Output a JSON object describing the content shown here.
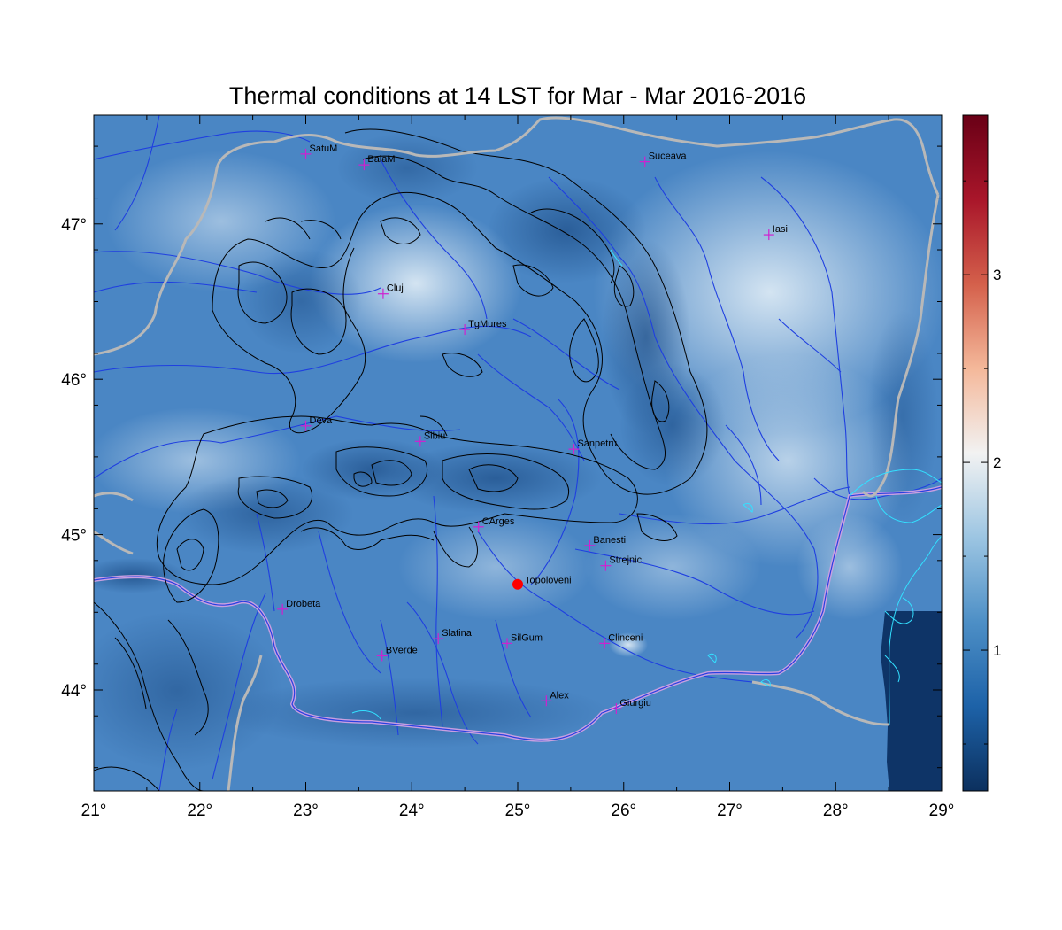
{
  "title": "Thermal conditions at 14 LST for Mar - Mar  2016-2016",
  "map": {
    "lon_range": [
      21,
      29
    ],
    "lat_range": [
      43.35,
      47.7
    ],
    "x_ticks": [
      {
        "value": 21,
        "label": "21°"
      },
      {
        "value": 22,
        "label": "22°"
      },
      {
        "value": 23,
        "label": "23°"
      },
      {
        "value": 24,
        "label": "24°"
      },
      {
        "value": 25,
        "label": "25°"
      },
      {
        "value": 26,
        "label": "26°"
      },
      {
        "value": 27,
        "label": "27°"
      },
      {
        "value": 28,
        "label": "28°"
      },
      {
        "value": 29,
        "label": "29°"
      }
    ],
    "y_ticks": [
      {
        "value": 44,
        "label": "44°"
      },
      {
        "value": 45,
        "label": "45°"
      },
      {
        "value": 46,
        "label": "46°"
      },
      {
        "value": 47,
        "label": "47°"
      }
    ],
    "colors": {
      "field_dark": "#1d4f8c",
      "field_mid": "#4a86c4",
      "field_light": "#cfe0ef",
      "river": "#1f3fe0",
      "border": "#b8b8b8",
      "coast": "#33e0ff",
      "contour": "#000000",
      "station_marker": "#d020d0",
      "highlight_point": "#ff0000"
    },
    "stations": [
      {
        "name": "SatuM",
        "lon": 23.0,
        "lat": 47.45
      },
      {
        "name": "BaiaM",
        "lon": 23.55,
        "lat": 47.38
      },
      {
        "name": "Suceava",
        "lon": 26.2,
        "lat": 47.4
      },
      {
        "name": "Iasi",
        "lon": 27.37,
        "lat": 46.93
      },
      {
        "name": "Cluj",
        "lon": 23.73,
        "lat": 46.55
      },
      {
        "name": "TgMures",
        "lon": 24.5,
        "lat": 46.32
      },
      {
        "name": "Deva",
        "lon": 23.0,
        "lat": 45.7
      },
      {
        "name": "Sibiu",
        "lon": 24.08,
        "lat": 45.6
      },
      {
        "name": "Sanpetru",
        "lon": 25.53,
        "lat": 45.55
      },
      {
        "name": "CArges",
        "lon": 24.63,
        "lat": 45.05
      },
      {
        "name": "Banesti",
        "lon": 25.68,
        "lat": 44.93
      },
      {
        "name": "Strejnic",
        "lon": 25.83,
        "lat": 44.8
      },
      {
        "name": "Drobeta",
        "lon": 22.78,
        "lat": 44.52
      },
      {
        "name": "Slatina",
        "lon": 24.25,
        "lat": 44.33
      },
      {
        "name": "SilGum",
        "lon": 24.9,
        "lat": 44.3
      },
      {
        "name": "Clinceni",
        "lon": 25.82,
        "lat": 44.3
      },
      {
        "name": "BVerde",
        "lon": 23.72,
        "lat": 44.22
      },
      {
        "name": "Alex",
        "lon": 25.27,
        "lat": 43.93
      },
      {
        "name": "Giurgiu",
        "lon": 25.93,
        "lat": 43.88
      }
    ],
    "highlight": {
      "name": "Topoloveni",
      "lon": 25.0,
      "lat": 44.68
    }
  },
  "colorbar": {
    "range": [
      0.25,
      3.85
    ],
    "ticks": [
      {
        "value": 1,
        "label": "1"
      },
      {
        "value": 2,
        "label": "2"
      },
      {
        "value": 3,
        "label": "3"
      }
    ],
    "stops": [
      "#0c305e",
      "#1d62a8",
      "#4d8fc6",
      "#9cc5e2",
      "#f2f2f2",
      "#f4b89a",
      "#d4604b",
      "#a9162a",
      "#690016"
    ]
  }
}
